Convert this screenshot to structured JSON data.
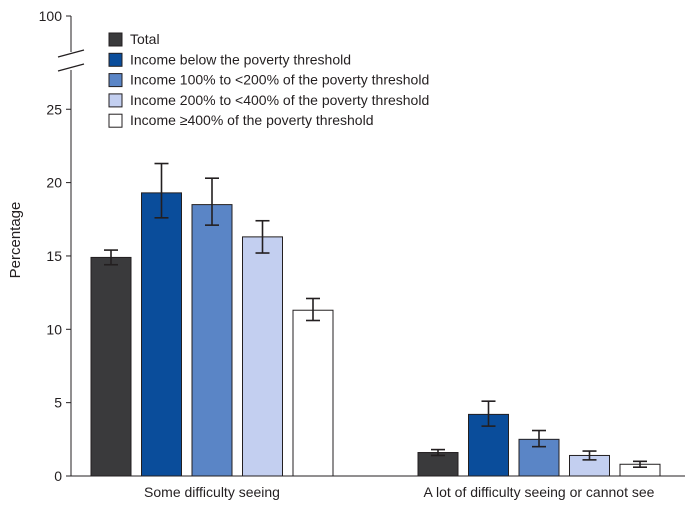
{
  "chart_data": {
    "type": "bar",
    "title": "",
    "xlabel": "",
    "ylabel": "Percentage",
    "ylim": [
      0,
      25
    ],
    "axis_break": {
      "top_tick": "100"
    },
    "yticks": [
      "0",
      "5",
      "10",
      "15",
      "20",
      "25"
    ],
    "categories": [
      "Some difficulty seeing",
      "A lot of difficulty seeing or cannot see"
    ],
    "series": [
      {
        "name": "Total",
        "color": "#3a3a3c",
        "values": [
          14.9,
          1.6
        ],
        "err_low": [
          14.4,
          1.4
        ],
        "err_high": [
          15.4,
          1.8
        ]
      },
      {
        "name": "Income below the poverty threshold",
        "color": "#0a4d9b",
        "values": [
          19.3,
          4.2
        ],
        "err_low": [
          17.6,
          3.4
        ],
        "err_high": [
          21.3,
          5.1
        ]
      },
      {
        "name": "Income 100% to <200% of the poverty threshold",
        "color": "#5a85c6",
        "values": [
          18.5,
          2.5
        ],
        "err_low": [
          17.1,
          2.0
        ],
        "err_high": [
          20.3,
          3.1
        ]
      },
      {
        "name": "Income 200% to <400% of the poverty threshold",
        "color": "#c3cff0",
        "values": [
          16.3,
          1.4
        ],
        "err_low": [
          15.2,
          1.1
        ],
        "err_high": [
          17.4,
          1.7
        ]
      },
      {
        "name": "Income ≥400% of the poverty threshold",
        "color": "#ffffff",
        "values": [
          11.3,
          0.8
        ],
        "err_low": [
          10.6,
          0.6
        ],
        "err_high": [
          12.1,
          1.0
        ]
      }
    ],
    "legend_position": "top-left"
  }
}
